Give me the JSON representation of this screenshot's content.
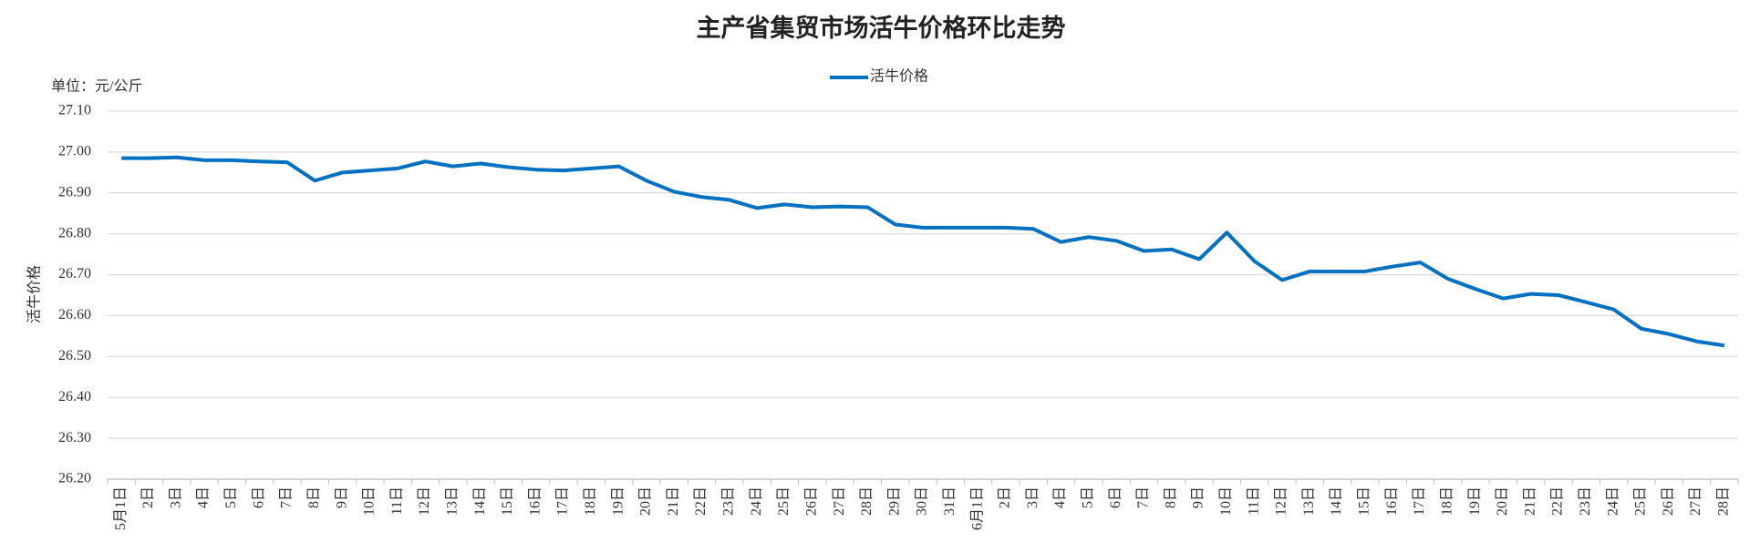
{
  "chart_data": {
    "type": "line",
    "title": "主产省集贸市场活牛价格环比走势",
    "unit_label": "单位：元/公斤",
    "y_label": "活牛价格",
    "categories": [
      "5月1日",
      "2日",
      "3日",
      "4日",
      "5日",
      "6日",
      "7日",
      "8日",
      "9日",
      "10日",
      "11日",
      "12日",
      "13日",
      "14日",
      "15日",
      "16日",
      "17日",
      "18日",
      "19日",
      "20日",
      "21日",
      "22日",
      "23日",
      "24日",
      "25日",
      "26日",
      "27日",
      "28日",
      "29日",
      "30日",
      "31日",
      "6月1日",
      "2日",
      "3日",
      "4日",
      "5日",
      "6日",
      "7日",
      "8日",
      "9日",
      "10日",
      "11日",
      "12日",
      "13日",
      "14日",
      "15日",
      "16日",
      "17日",
      "18日",
      "19日",
      "20日",
      "21日",
      "22日",
      "23日",
      "24日",
      "25日",
      "26日",
      "27日",
      "28日"
    ],
    "series": [
      {
        "name": "活牛价格",
        "color": "#0070c0",
        "values": [
          26.985,
          26.985,
          26.987,
          26.98,
          26.98,
          26.977,
          26.975,
          26.93,
          26.95,
          26.955,
          26.96,
          26.977,
          26.965,
          26.972,
          26.963,
          26.957,
          26.955,
          26.96,
          26.965,
          26.93,
          26.903,
          26.89,
          26.883,
          26.863,
          26.872,
          26.865,
          26.867,
          26.865,
          26.823,
          26.815,
          26.815,
          26.815,
          26.815,
          26.812,
          26.78,
          26.792,
          26.783,
          26.758,
          26.762,
          26.738,
          26.803,
          26.733,
          26.687,
          26.708,
          26.708,
          26.708,
          26.72,
          26.73,
          26.69,
          26.665,
          26.642,
          26.653,
          26.65,
          26.633,
          26.615,
          26.568,
          26.555,
          26.537,
          26.527
        ]
      }
    ],
    "ylim": [
      26.2,
      27.1
    ],
    "yticks": [
      {
        "value": 26.2,
        "label": "26.20"
      },
      {
        "value": 26.3,
        "label": "26.30"
      },
      {
        "value": 26.4,
        "label": "26.40"
      },
      {
        "value": 26.5,
        "label": "26.50"
      },
      {
        "value": 26.6,
        "label": "26.60"
      },
      {
        "value": 26.7,
        "label": "26.70"
      },
      {
        "value": 26.8,
        "label": "26.80"
      },
      {
        "value": 26.9,
        "label": "26.90"
      },
      {
        "value": 27.0,
        "label": "27.00"
      },
      {
        "value": 27.1,
        "label": "27.10"
      }
    ],
    "grid": true,
    "legend": "top"
  }
}
